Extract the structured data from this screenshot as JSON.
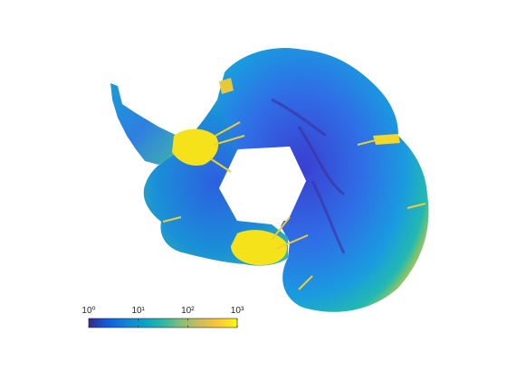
{
  "map": {
    "colorbar": {
      "scale": "log",
      "lim": [
        1,
        1000
      ],
      "ticks": [
        {
          "value": 1,
          "label": "10⁰"
        },
        {
          "value": 10,
          "label": "10¹"
        },
        {
          "value": 100,
          "label": "10²"
        },
        {
          "value": 1000,
          "label": "10³"
        }
      ],
      "colors": [
        "#352a87",
        "#0f5cdd",
        "#1481d6",
        "#06a4ca",
        "#2eb7a4",
        "#87bf77",
        "#d1bb59",
        "#fec832",
        "#f9fb0e"
      ]
    }
  }
}
